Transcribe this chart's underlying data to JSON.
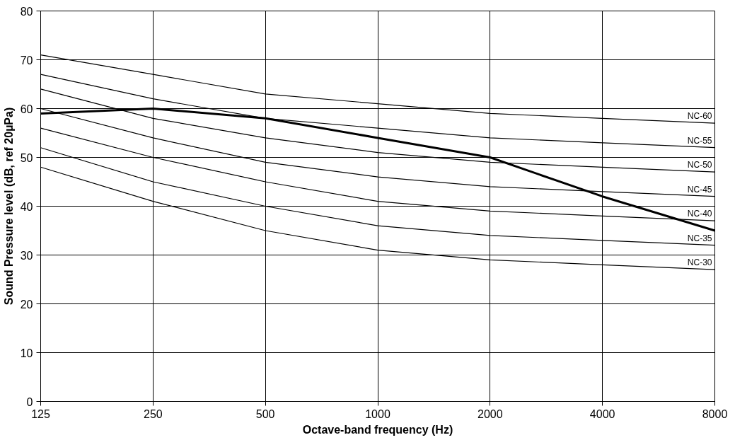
{
  "chart_data": {
    "type": "line",
    "xlabel": "Octave-band frequency (Hz)",
    "ylabel": "Sound Pressure level (dB, ref 20µPa)",
    "categories": [
      "125",
      "250",
      "500",
      "1000",
      "2000",
      "4000",
      "8000"
    ],
    "ylim": [
      0,
      80
    ],
    "yticks": [
      0,
      10,
      20,
      30,
      40,
      50,
      60,
      70,
      80
    ],
    "grid": true,
    "marker": "none",
    "line_style": "solid",
    "series": [
      {
        "name": "NC-60",
        "color": "#000000",
        "values": [
          71,
          67,
          63,
          61,
          59,
          58,
          57
        ]
      },
      {
        "name": "NC-55",
        "color": "#000000",
        "values": [
          67,
          62,
          58,
          56,
          54,
          53,
          52
        ]
      },
      {
        "name": "NC-50",
        "color": "#000000",
        "values": [
          64,
          58,
          54,
          51,
          49,
          48,
          47
        ]
      },
      {
        "name": "NC-45",
        "color": "#000000",
        "values": [
          60,
          54,
          49,
          46,
          44,
          43,
          42
        ]
      },
      {
        "name": "NC-40",
        "color": "#000000",
        "values": [
          56,
          50,
          45,
          41,
          39,
          38,
          37
        ]
      },
      {
        "name": "NC-35",
        "color": "#000000",
        "values": [
          52,
          45,
          40,
          36,
          34,
          33,
          32
        ]
      },
      {
        "name": "NC-30",
        "color": "#000000",
        "values": [
          48,
          41,
          35,
          31,
          29,
          28,
          27
        ]
      },
      {
        "color": "#000000",
        "values": [
          59,
          60,
          58,
          54,
          50,
          42,
          35
        ]
      }
    ]
  }
}
